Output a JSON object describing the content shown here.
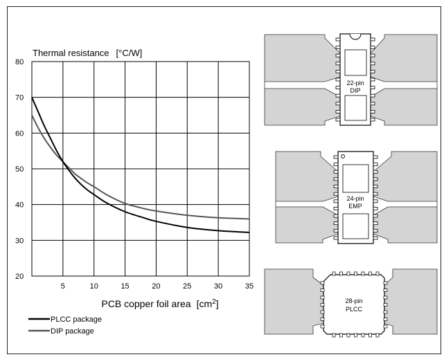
{
  "chart_data": {
    "type": "line",
    "title": "Thermal resistance",
    "y_unit": "[°C/W]",
    "xlabel": "PCB copper foil area",
    "x_unit_prefix": "[cm",
    "x_unit_exp": "2",
    "x_unit_suffix": "]",
    "xlim": [
      0,
      35
    ],
    "ylim": [
      20,
      80
    ],
    "x_ticks": [
      5,
      10,
      15,
      20,
      25,
      30,
      35
    ],
    "y_ticks": [
      20,
      30,
      40,
      50,
      60,
      70,
      80
    ],
    "series": [
      {
        "name": "PLCC package",
        "color": "#000000",
        "x": [
          0,
          1,
          2,
          3,
          4,
          5,
          6,
          7,
          8,
          9,
          10,
          12,
          15,
          18,
          20,
          25,
          30,
          35
        ],
        "y": [
          70,
          66,
          62,
          58.5,
          55,
          52,
          49.5,
          47.3,
          45.5,
          44,
          42.8,
          40.5,
          38,
          36.3,
          35.3,
          33.6,
          32.7,
          32.2
        ]
      },
      {
        "name": "DIP package",
        "color": "#555555",
        "x": [
          0,
          1,
          2,
          3,
          4,
          5,
          6,
          7,
          8,
          9,
          10,
          12,
          15,
          18,
          20,
          25,
          30,
          35
        ],
        "y": [
          65,
          61.5,
          58.5,
          56,
          53.8,
          52,
          50.2,
          48.5,
          47.2,
          46,
          45,
          42.8,
          40.3,
          38.9,
          38.2,
          37,
          36.3,
          36
        ]
      }
    ],
    "legend_placement": "bottom-left"
  },
  "packages": [
    {
      "name": "22-pin DIP",
      "line1": "22-pin",
      "line2": "DIP"
    },
    {
      "name": "24-pin EMP",
      "line1": "24-pin",
      "line2": "EMP"
    },
    {
      "name": "28-pin PLCC",
      "line1": "28-pin",
      "line2": "PLCC"
    }
  ]
}
